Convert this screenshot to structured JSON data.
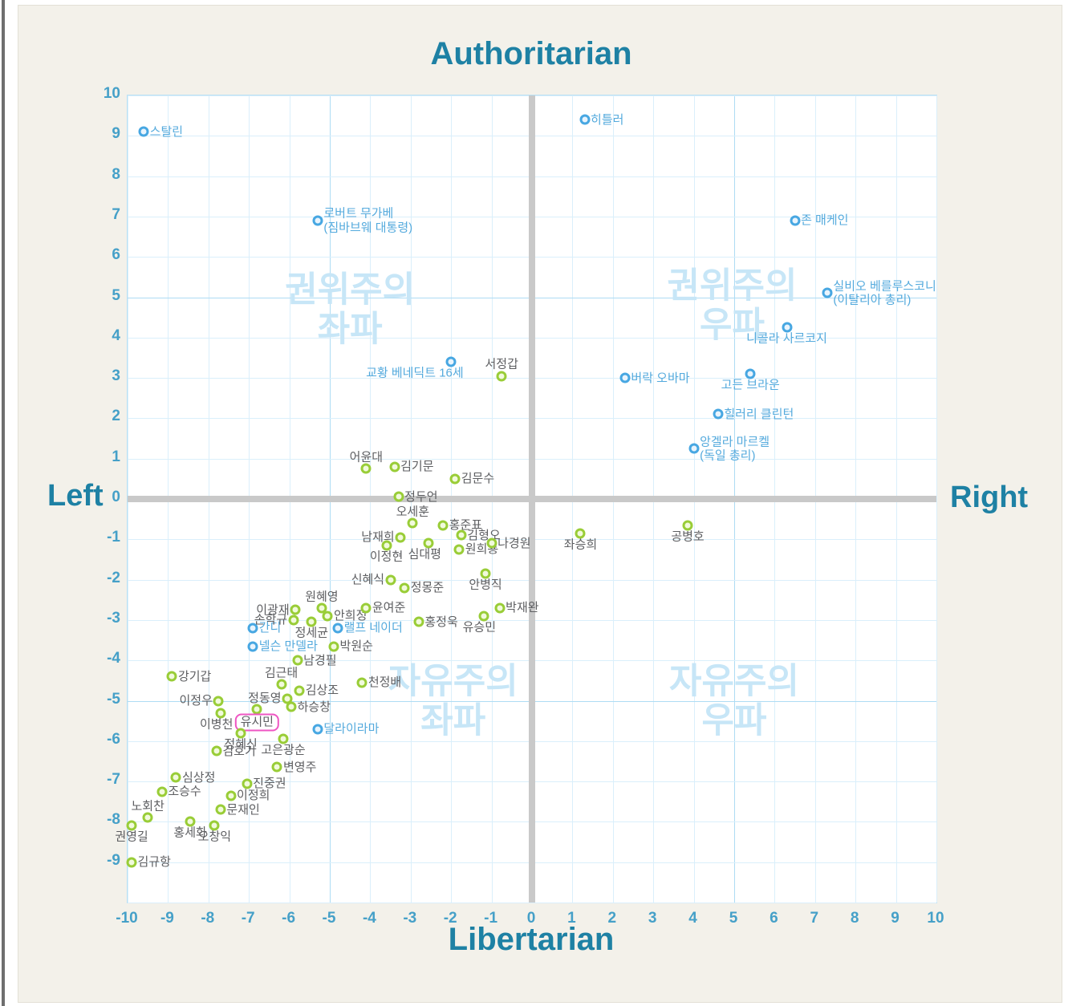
{
  "titles": {
    "top": "Authoritarian",
    "bottom": "Libertarian",
    "left": "Left",
    "right": "Right"
  },
  "colors": {
    "panel_background": "#f3f1ea",
    "plot_background": "#ffffff",
    "grid_minor": "#daeffb",
    "grid_major": "#aedcf4",
    "axis_bar": "#c9c9c9",
    "title_teal": "#1e81a4",
    "tick_teal": "#45a0c8",
    "green_marker": "#99cd37",
    "blue_marker": "#47a7e2",
    "green_label_text": "#5d5e61",
    "blue_label_text": "#54aadd",
    "watermark": "#c7e6f7",
    "highlight_box": "#ef56c3"
  },
  "chart_data": {
    "type": "scatter",
    "title": "Authoritarian / Libertarian vs Left / Right political compass",
    "xlabel_left": "Left",
    "xlabel_right": "Right",
    "ylabel_top": "Authoritarian",
    "ylabel_bottom": "Libertarian",
    "xlim": [
      -10,
      10
    ],
    "ylim": [
      -10,
      10
    ],
    "grid": true,
    "x_ticks": [
      -10,
      -9,
      -8,
      -7,
      -6,
      -5,
      -4,
      -3,
      -2,
      -1,
      0,
      1,
      2,
      3,
      4,
      5,
      6,
      7,
      8,
      9,
      10
    ],
    "y_ticks": [
      10,
      9,
      8,
      7,
      6,
      5,
      4,
      3,
      2,
      1,
      0,
      -1,
      -2,
      -3,
      -4,
      -5,
      -6,
      -7,
      -8,
      -9
    ],
    "quadrant_labels": [
      {
        "lines": [
          "권위주의",
          "좌파"
        ],
        "x": -4.5,
        "y": 4.7
      },
      {
        "lines": [
          "권위주의",
          "우파"
        ],
        "x": 4.95,
        "y": 4.8
      },
      {
        "lines": [
          "자유주의",
          "좌파"
        ],
        "x": -1.95,
        "y": -5.0
      },
      {
        "lines": [
          "자유주의",
          "우파"
        ],
        "x": 5.0,
        "y": -5.0
      }
    ],
    "highlighted_point": "유시민",
    "series": [
      {
        "name": "international-figures",
        "color": "blue",
        "points": [
          {
            "label": "스탈린",
            "x": -9.6,
            "y": 9.1,
            "lp": "right"
          },
          {
            "label": "히틀러",
            "x": 1.3,
            "y": 9.4,
            "lp": "right"
          },
          {
            "label": "로버트 무가베",
            "line2": "(짐바브웨 대통령)",
            "x": -5.3,
            "y": 6.9,
            "lp": "right"
          },
          {
            "label": "존 매케인",
            "x": 6.5,
            "y": 6.9,
            "lp": "right"
          },
          {
            "label": "실비오 베를루스코니",
            "line2": "(이탈리아 총리)",
            "x": 7.3,
            "y": 5.1,
            "lp": "right"
          },
          {
            "label": "니콜라 사르코지",
            "x": 6.3,
            "y": 4.25,
            "lp": "below"
          },
          {
            "label": "고든 브라운",
            "x": 5.4,
            "y": 3.1,
            "lp": "below"
          },
          {
            "label": "버락 오바마",
            "x": 2.3,
            "y": 3.0,
            "lp": "right"
          },
          {
            "label": "힐러리 클린턴",
            "x": 4.6,
            "y": 2.1,
            "lp": "right"
          },
          {
            "label": "앙겔라 마르켈",
            "line2": "(독일 총리)",
            "x": 4.0,
            "y": 1.25,
            "lp": "right"
          },
          {
            "label": "교황 베네딕트 16세",
            "x": -2.0,
            "y": 3.4,
            "lp": "below-left"
          },
          {
            "label": "간디",
            "x": -6.9,
            "y": -3.2,
            "lp": "right"
          },
          {
            "label": "넬슨 만델라",
            "x": -6.9,
            "y": -3.65,
            "lp": "right"
          },
          {
            "label": "랠프 네이더",
            "x": -4.8,
            "y": -3.2,
            "lp": "right"
          },
          {
            "label": "달라이라마",
            "x": -5.3,
            "y": -5.7,
            "lp": "right"
          }
        ]
      },
      {
        "name": "korean-figures",
        "color": "green",
        "points": [
          {
            "label": "서정갑",
            "x": -0.75,
            "y": 3.05,
            "lp": "above"
          },
          {
            "label": "어윤대",
            "x": -4.1,
            "y": 0.75,
            "lp": "above"
          },
          {
            "label": "김기문",
            "x": -3.4,
            "y": 0.8,
            "lp": "right"
          },
          {
            "label": "김문수",
            "x": -1.9,
            "y": 0.5,
            "lp": "right"
          },
          {
            "label": "정두언",
            "x": -3.3,
            "y": 0.05,
            "lp": "right"
          },
          {
            "label": "오세훈",
            "x": -2.95,
            "y": -0.6,
            "lp": "above"
          },
          {
            "label": "홍준표",
            "x": -2.2,
            "y": -0.65,
            "lp": "right"
          },
          {
            "label": "김형오",
            "x": -1.75,
            "y": -0.9,
            "lp": "right"
          },
          {
            "label": "남재희",
            "x": -3.25,
            "y": -0.95,
            "lp": "left"
          },
          {
            "label": "심대평",
            "x": -2.55,
            "y": -1.1,
            "lp": "below-left"
          },
          {
            "label": "원희룡",
            "x": -1.8,
            "y": -1.25,
            "lp": "right"
          },
          {
            "label": "나경원",
            "x": -1.0,
            "y": -1.1,
            "lp": "right"
          },
          {
            "label": "이정현",
            "x": -3.6,
            "y": -1.15,
            "lp": "below"
          },
          {
            "label": "좌승희",
            "x": 1.2,
            "y": -0.85,
            "lp": "below"
          },
          {
            "label": "공병호",
            "x": 3.85,
            "y": -0.65,
            "lp": "below"
          },
          {
            "label": "신혜식",
            "x": -3.5,
            "y": -2.0,
            "lp": "left"
          },
          {
            "label": "정몽준",
            "x": -3.15,
            "y": -2.2,
            "lp": "right"
          },
          {
            "label": "안병직",
            "x": -1.15,
            "y": -1.85,
            "lp": "below"
          },
          {
            "label": "박재완",
            "x": -0.8,
            "y": -2.7,
            "lp": "right"
          },
          {
            "label": "원혜영",
            "x": -5.2,
            "y": -2.7,
            "lp": "above"
          },
          {
            "label": "이광재",
            "x": -5.85,
            "y": -2.75,
            "lp": "left"
          },
          {
            "label": "손학규",
            "x": -5.9,
            "y": -3.0,
            "lp": "left"
          },
          {
            "label": "안희정",
            "x": -5.05,
            "y": -2.9,
            "lp": "right"
          },
          {
            "label": "정세균",
            "x": -5.45,
            "y": -3.05,
            "lp": "below"
          },
          {
            "label": "윤여준",
            "x": -4.1,
            "y": -2.7,
            "lp": "right"
          },
          {
            "label": "홍정욱",
            "x": -2.8,
            "y": -3.05,
            "lp": "right"
          },
          {
            "label": "유승민",
            "x": -1.2,
            "y": -2.9,
            "lp": "below-left"
          },
          {
            "label": "박원순",
            "x": -4.9,
            "y": -3.65,
            "lp": "right"
          },
          {
            "label": "남경필",
            "x": -5.8,
            "y": -4.0,
            "lp": "right"
          },
          {
            "label": "강기갑",
            "x": -8.9,
            "y": -4.4,
            "lp": "right"
          },
          {
            "label": "김근태",
            "x": -6.2,
            "y": -4.6,
            "lp": "above"
          },
          {
            "label": "김상조",
            "x": -5.75,
            "y": -4.75,
            "lp": "right"
          },
          {
            "label": "천정배",
            "x": -4.2,
            "y": -4.55,
            "lp": "right"
          },
          {
            "label": "이정우",
            "x": -7.75,
            "y": -5.0,
            "lp": "left"
          },
          {
            "label": "정동영",
            "x": -6.05,
            "y": -4.95,
            "lp": "left"
          },
          {
            "label": "하승창",
            "x": -5.95,
            "y": -5.15,
            "lp": "right"
          },
          {
            "label": "유시민",
            "x": -6.8,
            "y": -5.2,
            "lp": "below",
            "boxed": true
          },
          {
            "label": "이병천",
            "x": -7.7,
            "y": -5.3,
            "lp": "below-left"
          },
          {
            "label": "정혜신",
            "x": -7.2,
            "y": -5.8,
            "lp": "below"
          },
          {
            "label": "김호기",
            "x": -7.8,
            "y": -6.25,
            "lp": "right"
          },
          {
            "label": "고은광순",
            "x": -6.15,
            "y": -5.95,
            "lp": "below"
          },
          {
            "label": "변영주",
            "x": -6.3,
            "y": -6.65,
            "lp": "right"
          },
          {
            "label": "심상정",
            "x": -8.8,
            "y": -6.9,
            "lp": "right"
          },
          {
            "label": "진중권",
            "x": -7.05,
            "y": -7.05,
            "lp": "right"
          },
          {
            "label": "조승수",
            "x": -9.15,
            "y": -7.25,
            "lp": "right"
          },
          {
            "label": "이정희",
            "x": -7.45,
            "y": -7.35,
            "lp": "right"
          },
          {
            "label": "노회찬",
            "x": -9.5,
            "y": -7.9,
            "lp": "above"
          },
          {
            "label": "문재인",
            "x": -7.7,
            "y": -7.7,
            "lp": "right"
          },
          {
            "label": "홍세화",
            "x": -8.45,
            "y": -8.0,
            "lp": "below"
          },
          {
            "label": "오창익",
            "x": -7.85,
            "y": -8.1,
            "lp": "below"
          },
          {
            "label": "권영길",
            "x": -9.9,
            "y": -8.1,
            "lp": "below"
          },
          {
            "label": "김규항",
            "x": -9.9,
            "y": -9.0,
            "lp": "right"
          }
        ]
      }
    ]
  }
}
